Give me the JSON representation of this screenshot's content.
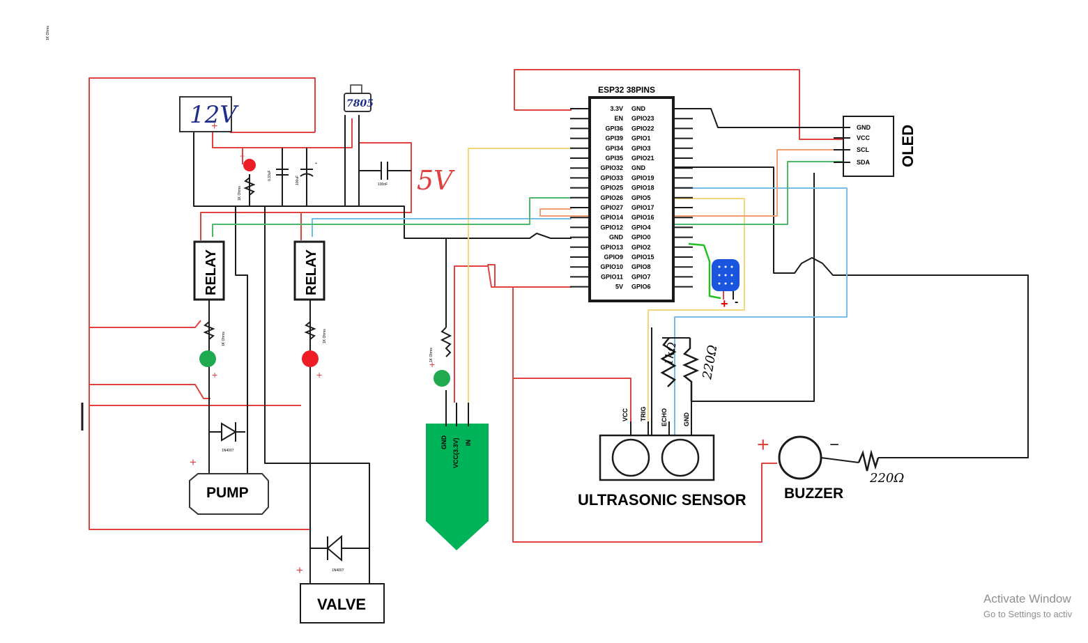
{
  "corner_label": "1K Ohms",
  "supply": {
    "label": "12V",
    "plus": "+",
    "regulator": "7805",
    "output_label": "5V"
  },
  "passives": {
    "cap1": "0.33uF",
    "cap2": "100uF",
    "cap3": "100nF",
    "res_supply": "1K Ohms",
    "res_relay1": "1K Ohms",
    "res_relay2": "1K Ohms",
    "res_soil": "1K Ohms",
    "res_echo_1k": "1kΩ",
    "res_echo_220": "220Ω",
    "res_buzzer": "220Ω"
  },
  "relays": [
    {
      "label": "RELAY"
    },
    {
      "label": "RELAY"
    }
  ],
  "diodes": [
    "1N4007",
    "1N4007"
  ],
  "loads": {
    "pump": "PUMP",
    "valve": "VALVE"
  },
  "esp32": {
    "title": "ESP32 38PINS",
    "left_pins": [
      "3.3V",
      "EN",
      "GPI36",
      "GPI39",
      "GPI34",
      "GPI35",
      "GPIO32",
      "GPIO33",
      "GPIO25",
      "GPIO26",
      "GPIO27",
      "GPIO14",
      "GPIO12",
      "GND",
      "GPIO13",
      "GPIO9",
      "GPIO10",
      "GPIO11",
      "5V"
    ],
    "right_pins": [
      "GND",
      "GPIO23",
      "GPIO22",
      "GPIO1",
      "GPIO3",
      "GPIO21",
      "GND",
      "GPIO19",
      "GPIO18",
      "GPIO5",
      "GPIO17",
      "GPIO16",
      "GPIO4",
      "GPIO0",
      "GPIO2",
      "GPIO15",
      "GPIO8",
      "GPIO7",
      "GPIO6"
    ]
  },
  "oled": {
    "title": "OLED",
    "pins": [
      "GND",
      "VCC",
      "SCL",
      "SDA"
    ]
  },
  "soil_sensor": {
    "pins": [
      "GND",
      "VCC(3.3V)",
      "IN"
    ]
  },
  "dht": {
    "plus": "+",
    "minus": "-"
  },
  "ultrasonic": {
    "title": "ULTRASONIC SENSOR",
    "pins": [
      "VCC",
      "TRIG",
      "ECHO",
      "GND"
    ]
  },
  "buzzer": {
    "title": "BUZZER",
    "plus": "+",
    "minus": "−"
  },
  "watermark": {
    "line1": "Activate Window",
    "line2": "Go to Settings to activ"
  },
  "colors": {
    "red": "#e04040",
    "black": "#1a1a1a",
    "yellow": "#f3d77a",
    "blue": "#74bde6",
    "green": "#4cb86a",
    "orange": "#f0a070",
    "sensor_green": "#00b359",
    "led_green": "#1faa50",
    "led_red": "#ee1c25",
    "dht_blue": "#1a55e0"
  }
}
